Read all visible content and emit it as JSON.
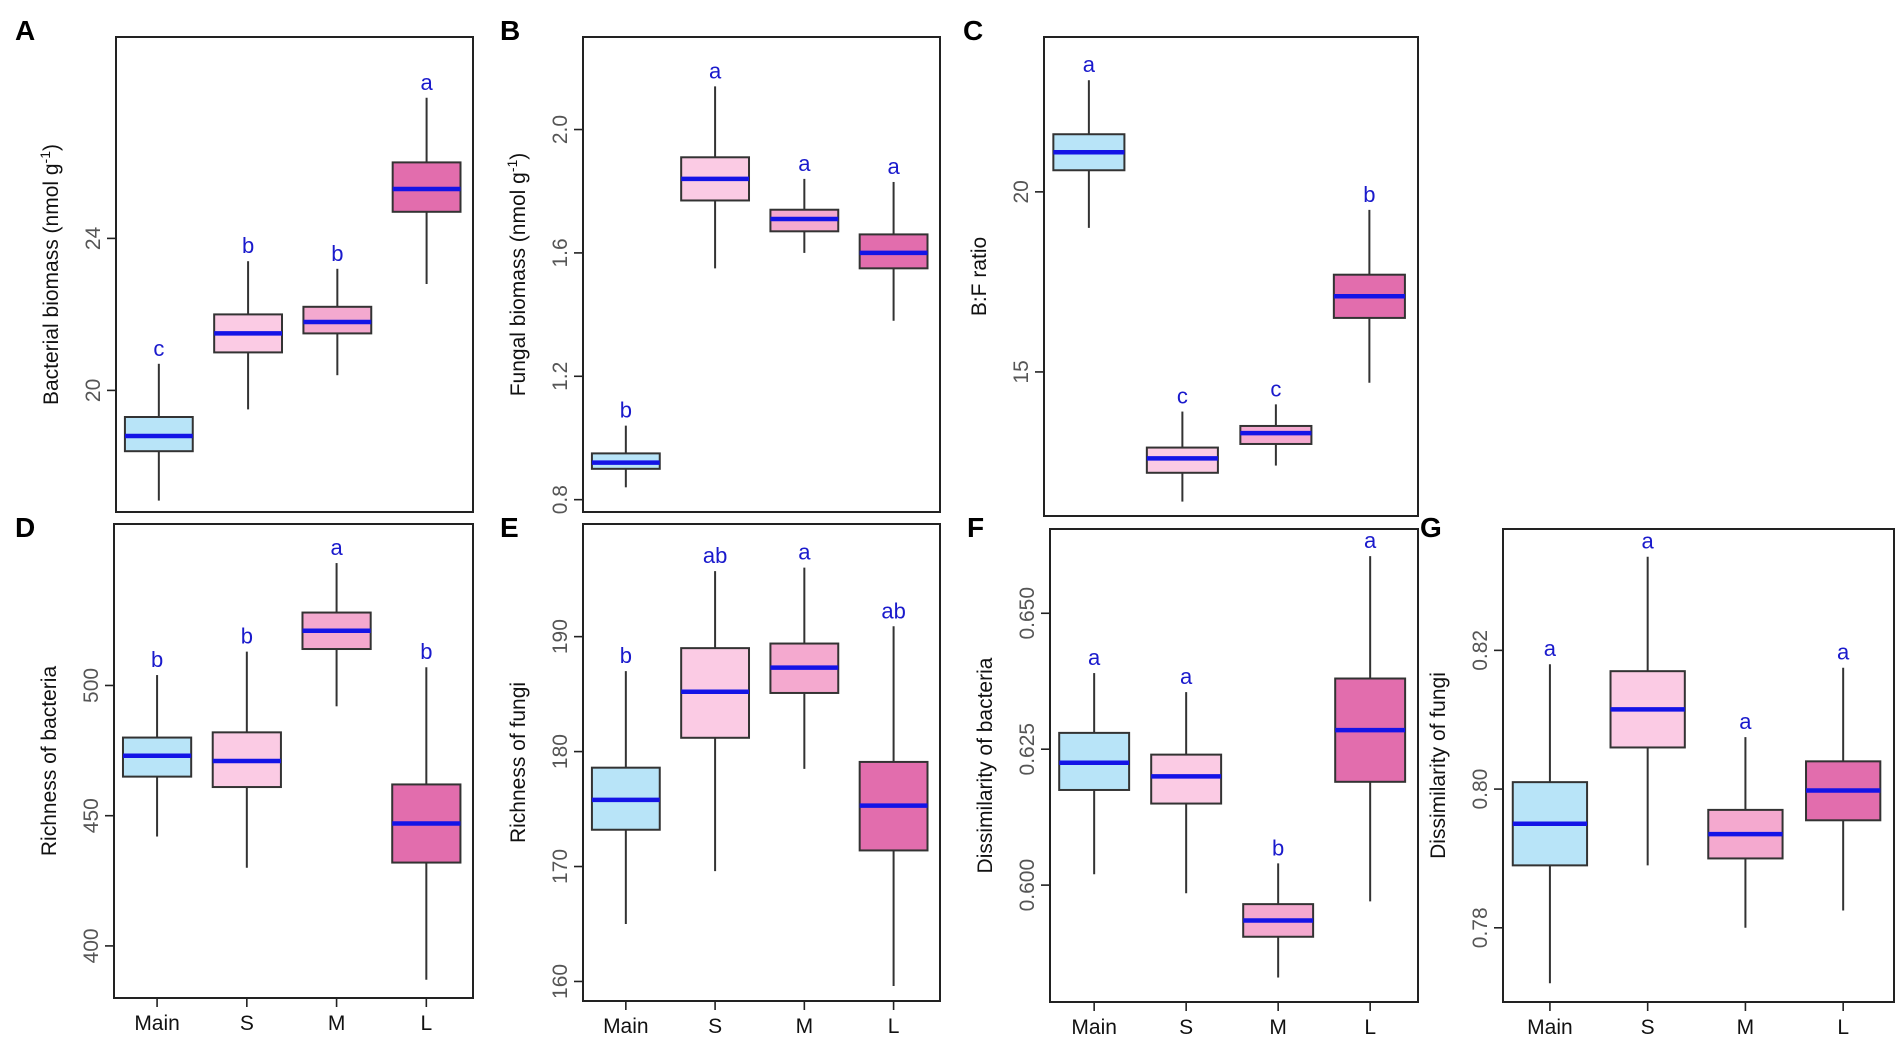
{
  "colors": {
    "frame": "#222222",
    "whisker": "#333333",
    "median": "#1414e6",
    "letter": "#1a1acc",
    "tick_text": "#555555",
    "label_text": "#111111",
    "Main": "#b8e4f8",
    "S": "#fbcbe4",
    "M": "#f4a9cf",
    "L": "#e26dad"
  },
  "x_tick_labels": [
    "Main",
    "S",
    "M",
    "L"
  ],
  "chart_data": [
    {
      "panel": "A",
      "type": "boxplot",
      "ylabel": "Bacterial biomass (nmol g",
      "ylabel_sup": "-1",
      "ylabel_end": ")",
      "categories": [
        "Main",
        "S",
        "M",
        "L"
      ],
      "show_xticks": false,
      "ylim": [
        16.8,
        29.3
      ],
      "yticks": [
        20,
        24
      ],
      "ytick_labels": [
        "20",
        "24"
      ],
      "boxes": [
        {
          "min": 17.1,
          "q1": 18.4,
          "median": 18.8,
          "q3": 19.3,
          "max": 20.7,
          "letter": "c"
        },
        {
          "min": 19.5,
          "q1": 21.0,
          "median": 21.5,
          "q3": 22.0,
          "max": 23.4,
          "letter": "b"
        },
        {
          "min": 20.4,
          "q1": 21.5,
          "median": 21.8,
          "q3": 22.2,
          "max": 23.2,
          "letter": "b"
        },
        {
          "min": 22.8,
          "q1": 24.7,
          "median": 25.3,
          "q3": 26.0,
          "max": 27.7,
          "letter": "a"
        }
      ]
    },
    {
      "panel": "B",
      "type": "boxplot",
      "ylabel": "Fungal biomass (nmol g",
      "ylabel_sup": "-1",
      "ylabel_end": ")",
      "categories": [
        "Main",
        "S",
        "M",
        "L"
      ],
      "show_xticks": false,
      "ylim": [
        0.76,
        2.3
      ],
      "yticks": [
        0.8,
        1.2,
        1.6,
        2.0
      ],
      "ytick_labels": [
        "0.8",
        "1.2",
        "1.6",
        "2.0"
      ],
      "boxes": [
        {
          "min": 0.84,
          "q1": 0.9,
          "median": 0.92,
          "q3": 0.95,
          "max": 1.04,
          "letter": "b"
        },
        {
          "min": 1.55,
          "q1": 1.77,
          "median": 1.84,
          "q3": 1.91,
          "max": 2.14,
          "letter": "a"
        },
        {
          "min": 1.6,
          "q1": 1.67,
          "median": 1.71,
          "q3": 1.74,
          "max": 1.84,
          "letter": "a"
        },
        {
          "min": 1.38,
          "q1": 1.55,
          "median": 1.6,
          "q3": 1.66,
          "max": 1.83,
          "letter": "a"
        }
      ]
    },
    {
      "panel": "C",
      "type": "boxplot",
      "ylabel": "B:F ratio",
      "ylabel_sup": "",
      "ylabel_end": "",
      "categories": [
        "Main",
        "S",
        "M",
        "L"
      ],
      "show_xticks": false,
      "ylim": [
        11.0,
        24.3
      ],
      "yticks": [
        15,
        20
      ],
      "ytick_labels": [
        "15",
        "20"
      ],
      "boxes": [
        {
          "min": 19.0,
          "q1": 20.6,
          "median": 21.1,
          "q3": 21.6,
          "max": 23.1,
          "letter": "a"
        },
        {
          "min": 11.4,
          "q1": 12.2,
          "median": 12.6,
          "q3": 12.9,
          "max": 13.9,
          "letter": "c"
        },
        {
          "min": 12.4,
          "q1": 13.0,
          "median": 13.3,
          "q3": 13.5,
          "max": 14.1,
          "letter": "c"
        },
        {
          "min": 14.7,
          "q1": 16.5,
          "median": 17.1,
          "q3": 17.7,
          "max": 19.5,
          "letter": "b"
        }
      ]
    },
    {
      "panel": "D",
      "type": "boxplot",
      "ylabel": "Richness of bacteria",
      "ylabel_sup": "",
      "ylabel_end": "",
      "categories": [
        "Main",
        "S",
        "M",
        "L"
      ],
      "show_xticks": true,
      "ylim": [
        380,
        562
      ],
      "yticks": [
        400,
        450,
        500
      ],
      "ytick_labels": [
        "400",
        "450",
        "500"
      ],
      "boxes": [
        {
          "min": 442,
          "q1": 465,
          "median": 473,
          "q3": 480,
          "max": 504,
          "letter": "b"
        },
        {
          "min": 430,
          "q1": 461,
          "median": 471,
          "q3": 482,
          "max": 513,
          "letter": "b"
        },
        {
          "min": 492,
          "q1": 514,
          "median": 521,
          "q3": 528,
          "max": 547,
          "letter": "a"
        },
        {
          "min": 387,
          "q1": 432,
          "median": 447,
          "q3": 462,
          "max": 507,
          "letter": "b"
        }
      ]
    },
    {
      "panel": "E",
      "type": "boxplot",
      "ylabel": "Richness of fungi",
      "ylabel_sup": "",
      "ylabel_end": "",
      "categories": [
        "Main",
        "S",
        "M",
        "L"
      ],
      "show_xticks": true,
      "ylim": [
        158.3,
        199.8
      ],
      "yticks": [
        160,
        170,
        180,
        190
      ],
      "ytick_labels": [
        "160",
        "170",
        "180",
        "190"
      ],
      "boxes": [
        {
          "min": 165.0,
          "q1": 173.2,
          "median": 175.8,
          "q3": 178.6,
          "max": 187.0,
          "letter": "b"
        },
        {
          "min": 169.6,
          "q1": 181.2,
          "median": 185.2,
          "q3": 189.0,
          "max": 195.7,
          "letter": "ab"
        },
        {
          "min": 178.5,
          "q1": 185.1,
          "median": 187.3,
          "q3": 189.4,
          "max": 196.0,
          "letter": "a"
        },
        {
          "min": 159.6,
          "q1": 171.4,
          "median": 175.3,
          "q3": 179.1,
          "max": 190.9,
          "letter": "ab"
        }
      ]
    },
    {
      "panel": "F",
      "type": "boxplot",
      "ylabel": "Dissimilarity of bacteria",
      "ylabel_sup": "",
      "ylabel_end": "",
      "categories": [
        "Main",
        "S",
        "M",
        "L"
      ],
      "show_xticks": true,
      "ylim": [
        0.5785,
        0.6655
      ],
      "yticks": [
        0.6,
        0.625,
        0.65
      ],
      "ytick_labels": [
        "0.600",
        "0.625",
        "0.650"
      ],
      "boxes": [
        {
          "min": 0.602,
          "q1": 0.6175,
          "median": 0.6225,
          "q3": 0.628,
          "max": 0.639,
          "letter": "a"
        },
        {
          "min": 0.5985,
          "q1": 0.615,
          "median": 0.62,
          "q3": 0.624,
          "max": 0.6355,
          "letter": "a"
        },
        {
          "min": 0.583,
          "q1": 0.5905,
          "median": 0.5935,
          "q3": 0.5965,
          "max": 0.604,
          "letter": "b"
        },
        {
          "min": 0.597,
          "q1": 0.619,
          "median": 0.6285,
          "q3": 0.638,
          "max": 0.6605,
          "letter": "a"
        }
      ]
    },
    {
      "panel": "G",
      "type": "boxplot",
      "ylabel": "Dissimilarity of fungi",
      "ylabel_sup": "",
      "ylabel_end": "",
      "categories": [
        "Main",
        "S",
        "M",
        "L"
      ],
      "show_xticks": true,
      "ylim": [
        0.7693,
        0.8375
      ],
      "yticks": [
        0.78,
        0.8,
        0.82
      ],
      "ytick_labels": [
        "0.78",
        "0.80",
        "0.82"
      ],
      "boxes": [
        {
          "min": 0.772,
          "q1": 0.789,
          "median": 0.795,
          "q3": 0.801,
          "max": 0.818,
          "letter": "a"
        },
        {
          "min": 0.789,
          "q1": 0.806,
          "median": 0.8115,
          "q3": 0.817,
          "max": 0.8335,
          "letter": "a"
        },
        {
          "min": 0.78,
          "q1": 0.79,
          "median": 0.7935,
          "q3": 0.797,
          "max": 0.8075,
          "letter": "a"
        },
        {
          "min": 0.7825,
          "q1": 0.7955,
          "median": 0.7998,
          "q3": 0.804,
          "max": 0.8175,
          "letter": "a"
        }
      ]
    }
  ]
}
